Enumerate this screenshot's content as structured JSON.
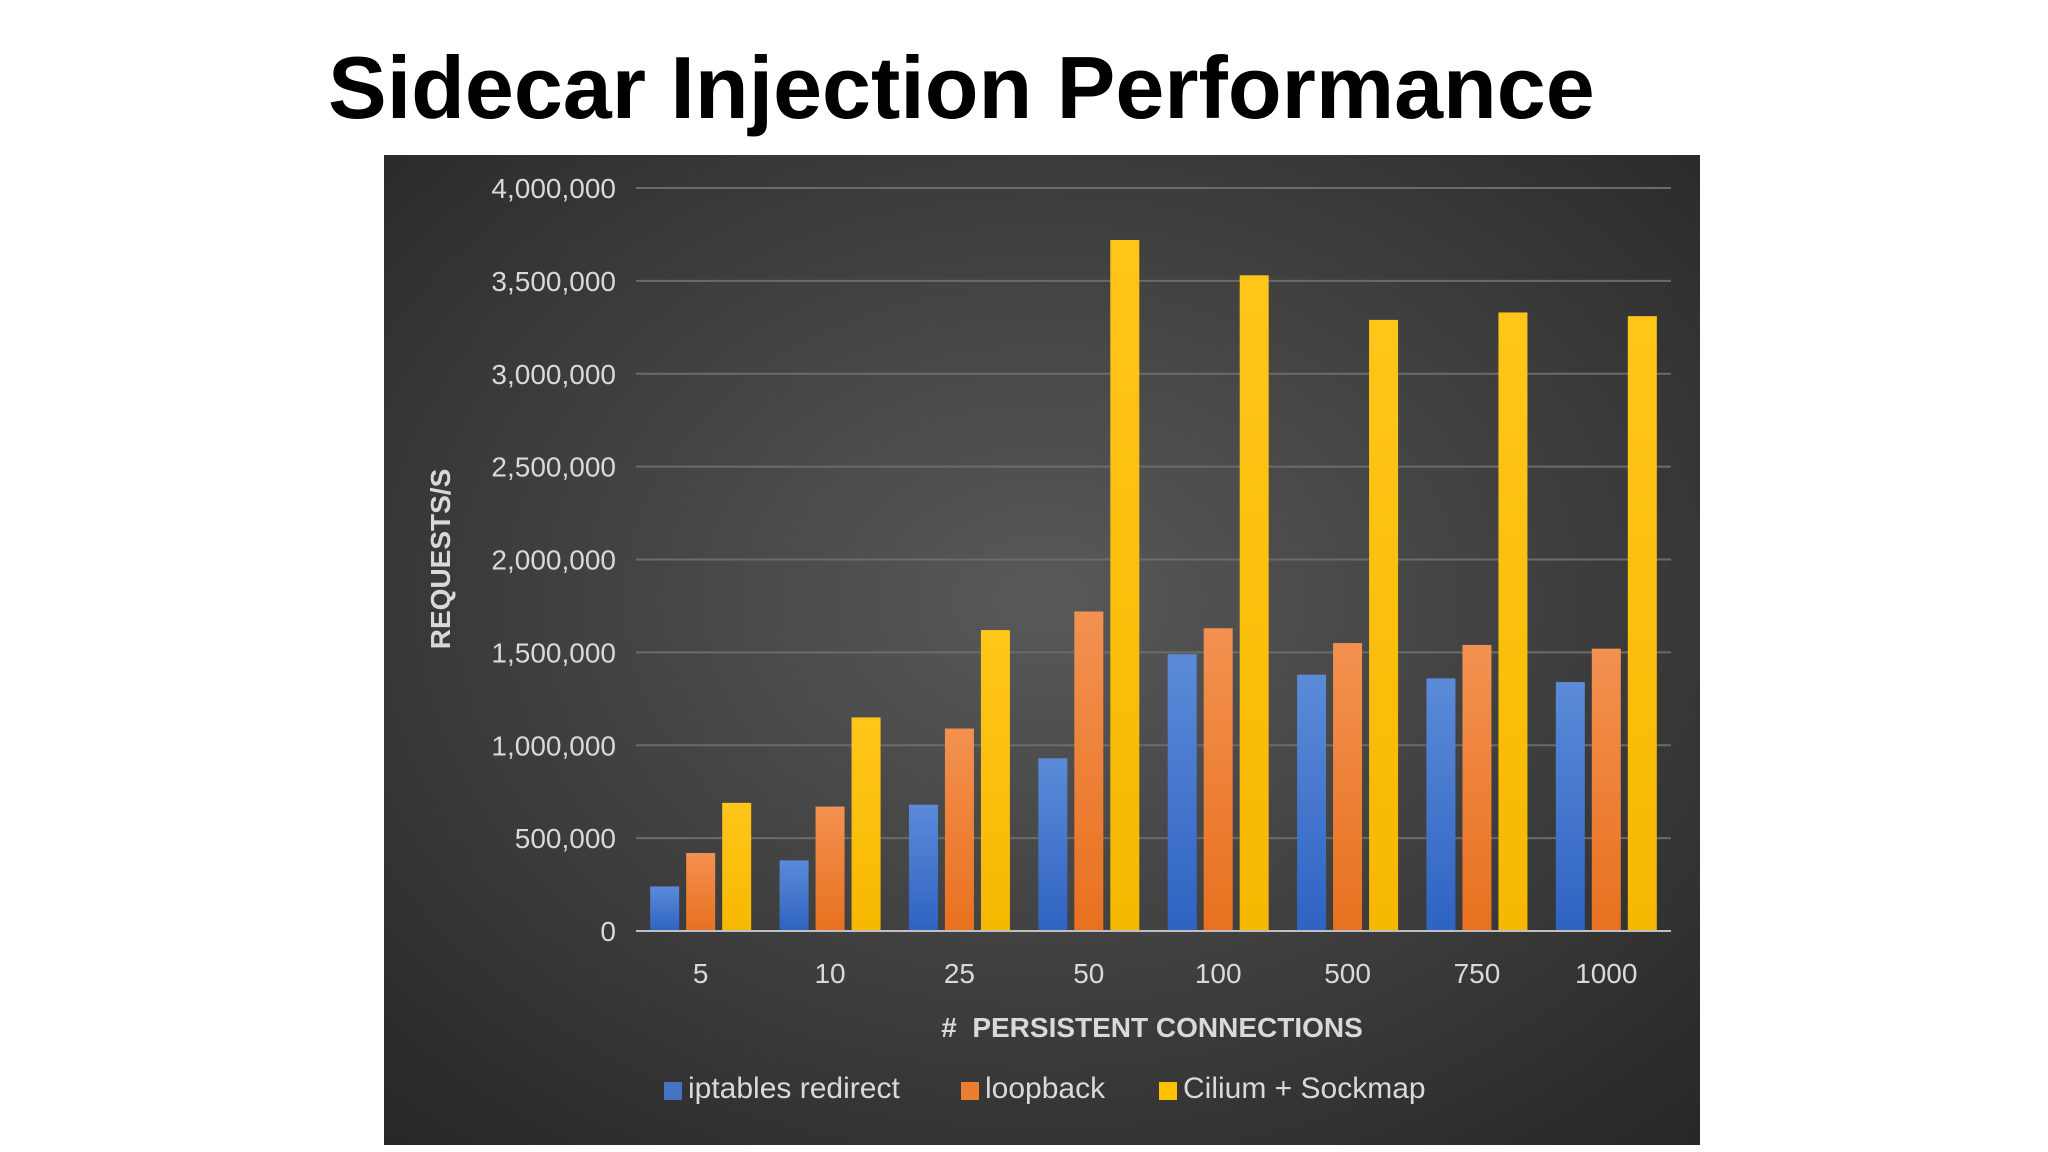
{
  "slide": {
    "title": "Sidecar Injection Performance"
  },
  "chart_data": {
    "type": "bar",
    "title": "",
    "xlabel": "#  PERSISTENT CONNECTIONS",
    "ylabel": "REQUESTS/S",
    "categories": [
      "5",
      "10",
      "25",
      "50",
      "100",
      "500",
      "750",
      "1000"
    ],
    "ylim": [
      0,
      4000000
    ],
    "yticks": [
      0,
      500000,
      1000000,
      1500000,
      2000000,
      2500000,
      3000000,
      3500000,
      4000000
    ],
    "ytick_labels": [
      "0",
      "500,000",
      "1,000,000",
      "1,500,000",
      "2,000,000",
      "2,500,000",
      "3,000,000",
      "3,500,000",
      "4,000,000"
    ],
    "grid": true,
    "legend_position": "bottom",
    "background_color": "#3c3c3c",
    "text_color": "#d9d9d9",
    "series": [
      {
        "name": "iptables redirect",
        "color": "#4472c4",
        "values": [
          240000,
          380000,
          680000,
          930000,
          1490000,
          1380000,
          1360000,
          1340000
        ]
      },
      {
        "name": "loopback",
        "color": "#ed7d31",
        "values": [
          420000,
          670000,
          1090000,
          1720000,
          1630000,
          1550000,
          1540000,
          1520000
        ]
      },
      {
        "name": "Cilium + Sockmap",
        "color": "#ffc000",
        "values": [
          690000,
          1150000,
          1620000,
          3720000,
          3530000,
          3290000,
          3330000,
          3310000
        ]
      }
    ]
  }
}
